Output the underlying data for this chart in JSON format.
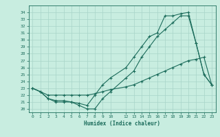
{
  "title": "",
  "xlabel": "Humidex (Indice chaleur)",
  "background_color": "#c8ede0",
  "line_color": "#1a6b5a",
  "grid_color": "#a8d4c8",
  "xlim": [
    -0.5,
    23.5
  ],
  "ylim": [
    19.5,
    35.0
  ],
  "xticks": [
    0,
    1,
    2,
    3,
    4,
    5,
    6,
    7,
    8,
    9,
    10,
    12,
    13,
    14,
    15,
    16,
    17,
    18,
    19,
    20,
    21,
    22,
    23
  ],
  "yticks": [
    20,
    21,
    22,
    23,
    24,
    25,
    26,
    27,
    28,
    29,
    30,
    31,
    32,
    33,
    34
  ],
  "line1_x": [
    0,
    1,
    2,
    3,
    4,
    5,
    6,
    7,
    8,
    9,
    10,
    12,
    13,
    14,
    15,
    16,
    17,
    18,
    19,
    20,
    21,
    22,
    23
  ],
  "line1_y": [
    23.0,
    22.5,
    21.5,
    21.2,
    21.2,
    21.0,
    20.5,
    20.0,
    20.0,
    21.5,
    22.5,
    24.5,
    25.5,
    27.5,
    29.0,
    30.5,
    31.5,
    32.5,
    33.5,
    33.5,
    29.5,
    25.0,
    23.5
  ],
  "line2_x": [
    0,
    1,
    2,
    3,
    4,
    5,
    6,
    7,
    8,
    9,
    10,
    12,
    13,
    14,
    15,
    16,
    17,
    18,
    19,
    20,
    21,
    22,
    23
  ],
  "line2_y": [
    23.0,
    22.5,
    21.5,
    21.0,
    21.0,
    21.0,
    20.8,
    20.5,
    22.0,
    23.5,
    24.5,
    26.0,
    27.5,
    29.0,
    30.5,
    31.0,
    33.5,
    33.5,
    33.8,
    34.0,
    29.5,
    25.0,
    23.5
  ],
  "line3_x": [
    0,
    1,
    2,
    3,
    4,
    5,
    6,
    7,
    8,
    9,
    10,
    12,
    13,
    14,
    15,
    16,
    17,
    18,
    19,
    20,
    21,
    22,
    23
  ],
  "line3_y": [
    23.0,
    22.5,
    22.0,
    22.0,
    22.0,
    22.0,
    22.0,
    22.0,
    22.2,
    22.5,
    22.8,
    23.2,
    23.5,
    24.0,
    24.5,
    25.0,
    25.5,
    26.0,
    26.5,
    27.0,
    27.2,
    27.5,
    23.5
  ]
}
